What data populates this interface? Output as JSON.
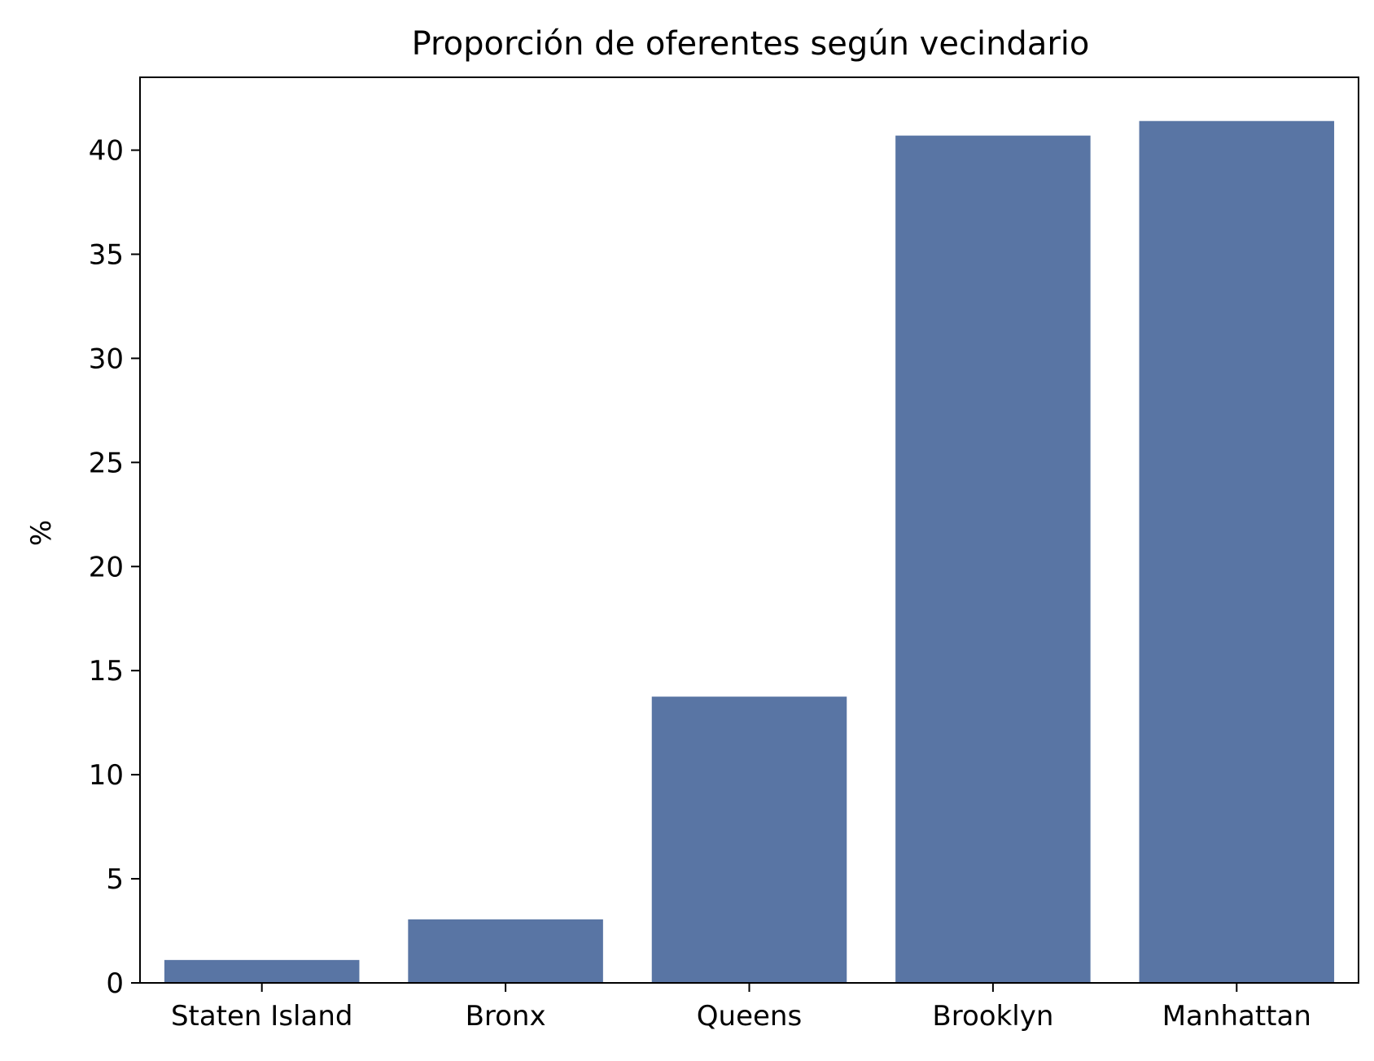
{
  "chart_data": {
    "type": "bar",
    "title": "Proporción de oferentes según vecindario",
    "xlabel": "",
    "ylabel": "%",
    "categories": [
      "Staten Island",
      "Bronx",
      "Queens",
      "Brooklyn",
      "Manhattan"
    ],
    "values": [
      1.1,
      3.05,
      13.75,
      40.7,
      41.4
    ],
    "ylim": [
      0,
      43.5
    ],
    "yticks": [
      "0",
      "5",
      "10",
      "15",
      "20",
      "25",
      "30",
      "35",
      "40"
    ],
    "bar_color": "#5975a4",
    "grid": false
  }
}
